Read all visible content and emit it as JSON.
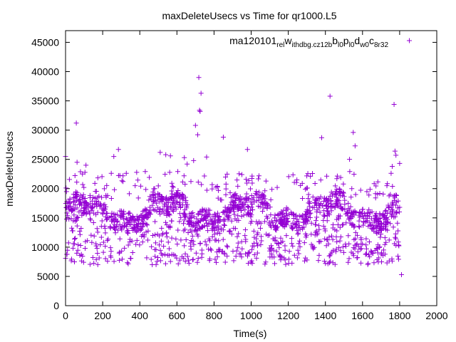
{
  "chart_data": {
    "type": "scatter",
    "title": "maxDeleteUsecs vs Time for qr1000.L5",
    "xlabel": "Time(s)",
    "ylabel": "maxDeleteUsecs",
    "xlim": [
      0,
      2000
    ],
    "ylim": [
      0,
      47000
    ],
    "xticks": [
      0,
      200,
      400,
      600,
      800,
      1000,
      1200,
      1400,
      1600,
      1800,
      2000
    ],
    "yticks": [
      0,
      5000,
      10000,
      15000,
      20000,
      25000,
      30000,
      35000,
      40000,
      45000
    ],
    "legend_position": "top-right",
    "marker": "plus",
    "series": [
      {
        "name_parts": [
          {
            "text": "ma120101",
            "sub": false
          },
          {
            "text": "rel",
            "sub": true
          },
          {
            "text": "w",
            "sub": false
          },
          {
            "text": "ithdbg.cz12b",
            "sub": true
          },
          {
            "text": "b",
            "sub": false
          },
          {
            "text": "l0",
            "sub": true
          },
          {
            "text": "p",
            "sub": false
          },
          {
            "text": "l0",
            "sub": true
          },
          {
            "text": "d",
            "sub": false
          },
          {
            "text": "w0",
            "sub": true
          },
          {
            "text": "c",
            "sub": false
          },
          {
            "text": "8r32",
            "sub": true
          }
        ],
        "color": "#9400d3",
        "outliers": [
          [
            0,
            25500
          ],
          [
            5,
            19500
          ],
          [
            58,
            31200
          ],
          [
            62,
            24500
          ],
          [
            110,
            24000
          ],
          [
            260,
            25500
          ],
          [
            285,
            26700
          ],
          [
            375,
            20500
          ],
          [
            480,
            20000
          ],
          [
            510,
            26200
          ],
          [
            540,
            25800
          ],
          [
            565,
            25600
          ],
          [
            640,
            25300
          ],
          [
            655,
            24200
          ],
          [
            690,
            24800
          ],
          [
            700,
            30800
          ],
          [
            712,
            29200
          ],
          [
            718,
            39000
          ],
          [
            722,
            33400
          ],
          [
            725,
            33200
          ],
          [
            730,
            36300
          ],
          [
            760,
            25400
          ],
          [
            850,
            28800
          ],
          [
            980,
            26700
          ],
          [
            1080,
            21300
          ],
          [
            1380,
            28700
          ],
          [
            1425,
            35800
          ],
          [
            1530,
            25000
          ],
          [
            1550,
            29600
          ],
          [
            1560,
            27300
          ],
          [
            1770,
            34400
          ],
          [
            1775,
            26400
          ],
          [
            1780,
            25700
          ],
          [
            1800,
            24300
          ],
          [
            1810,
            5300
          ],
          [
            1800,
            16800
          ],
          [
            1760,
            23800
          ],
          [
            1750,
            19000
          ]
        ],
        "bands": [
          {
            "x_start": 0,
            "x_end": 1800,
            "y_min": 5500,
            "y_max": 23000,
            "count": 1700
          }
        ]
      }
    ]
  }
}
